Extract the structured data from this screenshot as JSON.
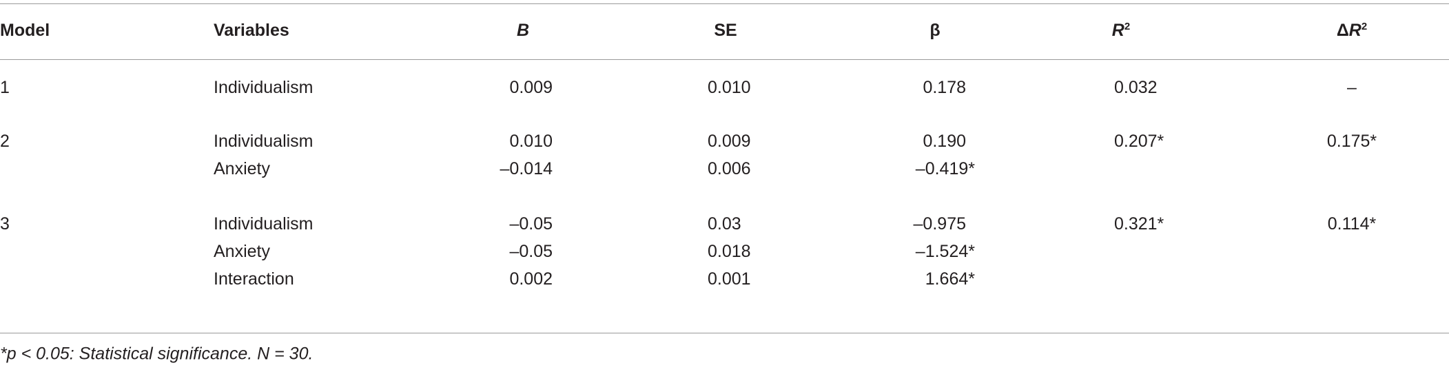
{
  "table": {
    "header": [
      {
        "text": "Model"
      },
      {
        "text": "Variables"
      },
      {
        "text": "B",
        "italic": true
      },
      {
        "text": "SE"
      },
      {
        "text": "β"
      },
      {
        "text": "R",
        "sup": "2",
        "italic": true
      },
      {
        "prefix": "Δ",
        "text": "R",
        "sup": "2",
        "italic": true
      }
    ],
    "groups": [
      {
        "model": "1",
        "r2": "0.032",
        "dr2": "–",
        "rows": [
          {
            "variable": "Individualism",
            "b": "0.009",
            "se": "0.010",
            "beta": "0.178"
          }
        ]
      },
      {
        "model": "2",
        "r2": "0.207*",
        "dr2": "0.175*",
        "rows": [
          {
            "variable": "Individualism",
            "b": "0.010",
            "se": "0.009",
            "beta": "0.190"
          },
          {
            "variable": "Anxiety",
            "b": "–0.014",
            "se": "0.006",
            "beta": "–0.419*"
          }
        ]
      },
      {
        "model": "3",
        "r2": "0.321*",
        "dr2": "0.114*",
        "rows": [
          {
            "variable": "Individualism",
            "b": "–0.05",
            "se": "0.03",
            "beta": "–0.975"
          },
          {
            "variable": "Anxiety",
            "b": "–0.05",
            "se": "0.018",
            "beta": "–1.524*"
          },
          {
            "variable": "Interaction",
            "b": "0.002",
            "se": "0.001",
            "beta": "1.664*"
          }
        ]
      }
    ],
    "note": "*p < 0.05: Statistical significance. N = 30."
  }
}
